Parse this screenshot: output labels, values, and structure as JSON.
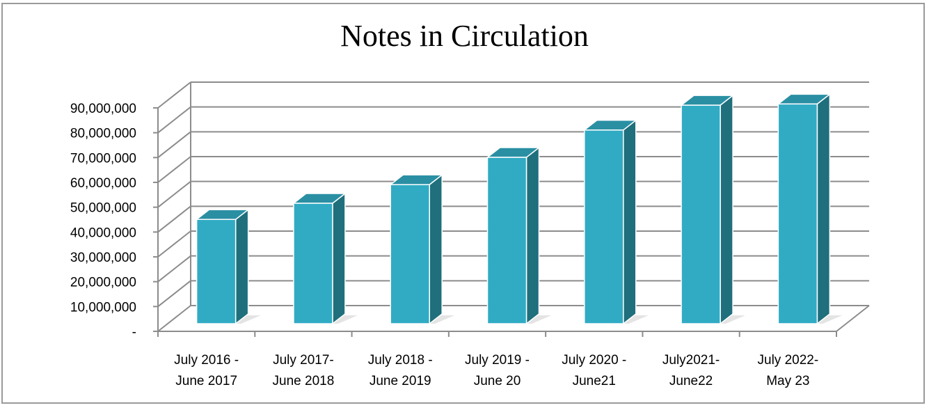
{
  "chart_data": {
    "type": "bar",
    "title": "Notes in Circulation",
    "xlabel": "",
    "ylabel": "",
    "categories": [
      [
        "July 2016 -",
        "June 2017"
      ],
      [
        "July 2017-",
        "June 2018"
      ],
      [
        "July 2018 -",
        "June 2019"
      ],
      [
        "July 2019 -",
        "June 20"
      ],
      [
        "July 2020 -",
        "June21"
      ],
      [
        "July2021-",
        "June22"
      ],
      [
        "July 2022-",
        "May 23"
      ]
    ],
    "values": [
      42000000,
      48500000,
      56000000,
      67000000,
      78000000,
      88000000,
      88500000
    ],
    "ylim": [
      0,
      90000000
    ],
    "yticks": [
      "-",
      "10,000,000",
      "20,000,000",
      "30,000,000",
      "40,000,000",
      "50,000,000",
      "60,000,000",
      "70,000,000",
      "80,000,000",
      "90,000,000"
    ],
    "grid": true,
    "legend": "none",
    "colors": {
      "bar_front": "#31abc4",
      "bar_side": "#1f6f7d",
      "bar_top": "#2a8fa3",
      "grid": "#8c8c8c"
    }
  }
}
